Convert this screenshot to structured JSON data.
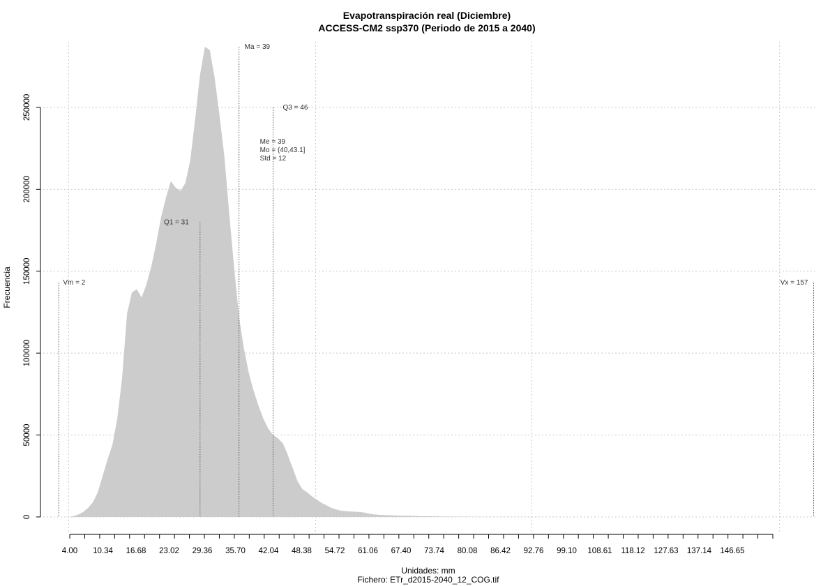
{
  "chart_data": {
    "type": "area",
    "title": "Evapotranspiración real (Diciembre)",
    "subtitle": "ACCESS-CM2 ssp370 (Periodo de 2015 a 2040)",
    "xlabel": "Unidades: mm",
    "ylabel": "Frecuencia",
    "caption": "Fichero: ETr_d2015-2040_12_COG.tif",
    "grid": true,
    "fill_color": "#cccccc",
    "xlim": [
      -1.2,
      157.5
    ],
    "ylim": [
      0,
      290000
    ],
    "y_ticks": [
      0,
      50000,
      100000,
      150000,
      200000,
      250000
    ],
    "y_tick_labels": [
      "0",
      "50000",
      "100000",
      "150000",
      "200000",
      "250000"
    ],
    "x_grid": [
      4.0,
      54.72,
      99.1,
      150.0
    ],
    "x_tick_labels": [
      "4.00",
      "10.34",
      "16.68",
      "23.02",
      "29.36",
      "35.70",
      "42.04",
      "48.38",
      "54.72",
      "61.06",
      "67.40",
      "73.74",
      "80.08",
      "86.42",
      "92.76",
      "99.10",
      "108.61",
      "118.12",
      "127.63",
      "137.14",
      "146.65"
    ],
    "x": [
      4,
      5,
      6,
      7,
      8,
      9,
      10,
      11,
      12,
      13,
      14,
      15,
      16,
      17,
      18,
      19,
      20,
      21,
      22,
      23,
      24,
      25,
      26,
      27,
      28,
      29,
      30,
      31,
      32,
      33,
      34,
      35,
      36,
      37,
      38,
      39,
      40,
      41,
      42,
      43,
      44,
      45,
      46,
      47,
      48,
      49,
      50,
      51,
      52,
      53,
      54,
      55,
      56,
      57,
      58,
      59,
      60,
      61,
      62,
      63,
      64,
      65,
      66,
      67,
      68,
      69,
      70,
      72,
      74,
      76,
      78,
      80,
      82,
      84,
      86,
      88,
      90,
      93,
      96,
      100,
      110,
      120,
      130,
      140,
      150,
      155
    ],
    "y": [
      0,
      500,
      1500,
      3000,
      5500,
      9000,
      15000,
      25000,
      35000,
      44000,
      60000,
      85000,
      124000,
      137000,
      139000,
      134000,
      142000,
      153000,
      167000,
      183000,
      195000,
      205000,
      201000,
      199000,
      204000,
      218000,
      243000,
      270000,
      287000,
      285000,
      268000,
      245000,
      220000,
      185000,
      152000,
      122000,
      103000,
      88000,
      77000,
      68000,
      60000,
      54000,
      50000,
      48000,
      45000,
      38000,
      30000,
      22000,
      17000,
      15000,
      12500,
      10500,
      8500,
      7000,
      5500,
      4500,
      3800,
      3500,
      3300,
      3200,
      3000,
      2500,
      1800,
      1500,
      1300,
      1100,
      1000,
      800,
      700,
      500,
      400,
      300,
      250,
      200,
      150,
      120,
      100,
      80,
      60,
      40,
      20,
      10,
      5,
      2,
      0,
      0
    ],
    "stats": {
      "vm": {
        "label": "Vm = 2",
        "x": 2,
        "height": 143000
      },
      "q1": {
        "label": "Q1 = 31",
        "x": 31,
        "height": 180000
      },
      "ma": {
        "label": "Ma = 39",
        "x": 39,
        "height": 287000
      },
      "q3": {
        "label": "Q3 = 46",
        "x": 46,
        "height": 250000
      },
      "me": {
        "label": "Me = 39"
      },
      "mo": {
        "label": "Mo = (40,43.1]"
      },
      "std": {
        "label": "Std = 12"
      },
      "vx": {
        "label": "Vx = 157",
        "x": 157,
        "height": 143000
      }
    }
  }
}
